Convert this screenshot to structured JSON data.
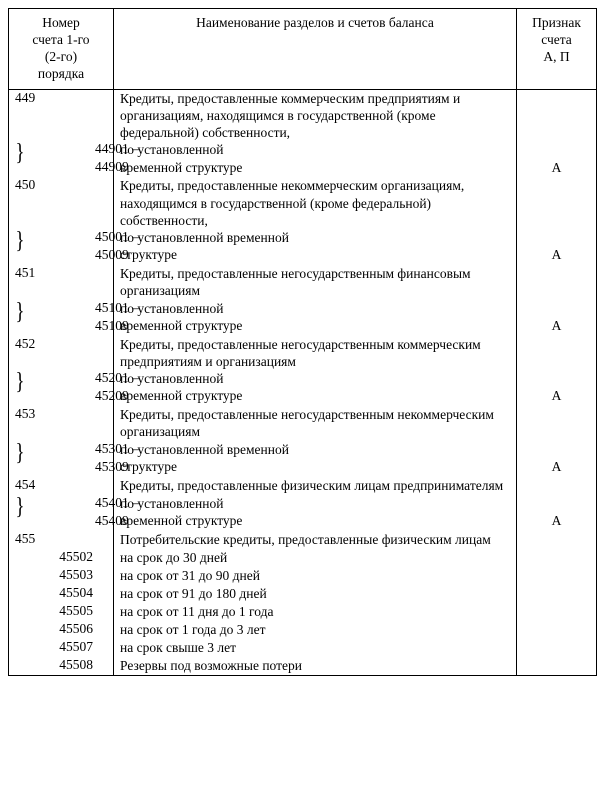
{
  "headers": {
    "num": "Номер\nсчета 1-го\n(2-го)\nпорядка",
    "name": "Наименование разделов и счетов баланса",
    "sign": "Признак\nсчета\nА, П"
  },
  "rows": [
    {
      "type": "first",
      "num": "449",
      "name": "Кредиты, предоставленные коммерческим предприятиям и организациям, находящимся в государственной (кроме федеральной) собственности,",
      "sign": ""
    },
    {
      "type": "range",
      "from": "44901",
      "to": "44909",
      "names": [
        "по установленной",
        "временной структуре"
      ],
      "sign": "А"
    },
    {
      "type": "first",
      "num": "450",
      "name": "Кредиты, предоставленные некоммерческим организациям, находящимся в государственной (кроме федеральной) собственности,",
      "sign": ""
    },
    {
      "type": "range",
      "from": "45001",
      "to": "45009",
      "names": [
        "по установленной временной",
        "структуре"
      ],
      "sign": "А"
    },
    {
      "type": "first",
      "num": "451",
      "name": "Кредиты, предоставленные негосударственным финансовым организациям",
      "sign": ""
    },
    {
      "type": "range",
      "from": "45101",
      "to": "45109",
      "names": [
        "по установленной",
        "временной структуре"
      ],
      "sign": "А"
    },
    {
      "type": "first",
      "num": "452",
      "name": "Кредиты, предоставленные негосударственным коммерческим предприятиям и организациям",
      "sign": ""
    },
    {
      "type": "range",
      "from": "45201",
      "to": "45209",
      "names": [
        "по установленной",
        "временной структуре"
      ],
      "sign": "А"
    },
    {
      "type": "first",
      "num": "453",
      "name": "Кредиты, предоставленные негосударственным некоммерческим организациям",
      "sign": ""
    },
    {
      "type": "range",
      "from": "45301",
      "to": "45309",
      "names": [
        "по установленной временной",
        "структуре"
      ],
      "sign": "А"
    },
    {
      "type": "first",
      "num": "454",
      "name": "Кредиты, предоставленные физическим лицам предпринимателям",
      "sign": ""
    },
    {
      "type": "range",
      "from": "45401",
      "to": "45409",
      "names": [
        "по установленной",
        "временной структуре"
      ],
      "sign": "А"
    },
    {
      "type": "first",
      "num": "455",
      "name": "Потребительские кредиты, предоставленные физическим лицам",
      "sign": ""
    },
    {
      "type": "sub",
      "num": "45502",
      "name": "на срок до 30 дней",
      "sign": ""
    },
    {
      "type": "sub",
      "num": "45503",
      "name": "на срок от 31 до 90 дней",
      "sign": ""
    },
    {
      "type": "sub",
      "num": "45504",
      "name": "на срок от 91 до 180 дней",
      "sign": ""
    },
    {
      "type": "sub",
      "num": "45505",
      "name": "на срок от 11 дня до 1 года",
      "sign": ""
    },
    {
      "type": "sub",
      "num": "45506",
      "name": "на срок от 1 года до 3 лет",
      "sign": ""
    },
    {
      "type": "sub",
      "num": "45507",
      "name": "на срок свыше 3 лет",
      "sign": ""
    },
    {
      "type": "sub",
      "num": "45508",
      "name": "Резервы под возможные потери",
      "sign": ""
    }
  ]
}
